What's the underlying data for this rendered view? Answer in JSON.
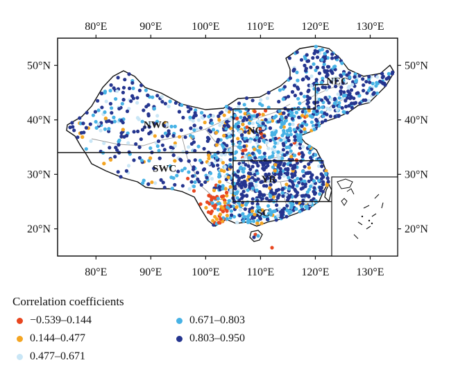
{
  "map": {
    "lon_labels": [
      "80°E",
      "90°E",
      "100°E",
      "110°E",
      "120°E",
      "130°E"
    ],
    "lon_values": [
      80,
      90,
      100,
      110,
      120,
      130
    ],
    "lat_labels": [
      "20°N",
      "30°N",
      "40°N",
      "50°N"
    ],
    "lat_values": [
      20,
      30,
      40,
      50
    ],
    "lon_range": [
      73,
      135
    ],
    "lat_range": [
      15,
      55
    ],
    "regions": [
      {
        "id": "nwc",
        "label": "NWC",
        "lon": 91,
        "lat": 38.5
      },
      {
        "id": "nc",
        "label": "NC",
        "lon": 109,
        "lat": 37.5
      },
      {
        "id": "nec",
        "label": "NEC",
        "lon": 124,
        "lat": 46.5
      },
      {
        "id": "swc",
        "label": "SWC",
        "lon": 92.5,
        "lat": 30.5
      },
      {
        "id": "yr",
        "label": "YR",
        "lon": 111.5,
        "lat": 28.5
      },
      {
        "id": "sc",
        "label": "SC",
        "lon": 110.5,
        "lat": 22.3
      }
    ],
    "region_box_lines": [
      [
        [
          73,
          34
        ],
        [
          105,
          34
        ]
      ],
      [
        [
          105,
          25
        ],
        [
          105,
          42
        ]
      ],
      [
        [
          105,
          42
        ],
        [
          120,
          42
        ]
      ],
      [
        [
          105,
          32.5
        ],
        [
          121.5,
          32.5
        ]
      ],
      [
        [
          105,
          25
        ],
        [
          123,
          25
        ]
      ],
      [
        [
          120,
          42
        ],
        [
          120,
          46.5
        ]
      ],
      [
        [
          120,
          46.5
        ],
        [
          122.5,
          46.5
        ]
      ]
    ]
  },
  "legend": {
    "title": "Correlation coefficients",
    "items": [
      {
        "label": "−0.539–0.144",
        "color": "#e8461f"
      },
      {
        "label": "0.671–0.803",
        "color": "#47b2e5"
      },
      {
        "label": "0.144–0.477",
        "color": "#f4a522"
      },
      {
        "label": "0.803–0.950",
        "color": "#25358f"
      },
      {
        "label": "0.477–0.671",
        "color": "#c9e6f6"
      }
    ]
  }
}
